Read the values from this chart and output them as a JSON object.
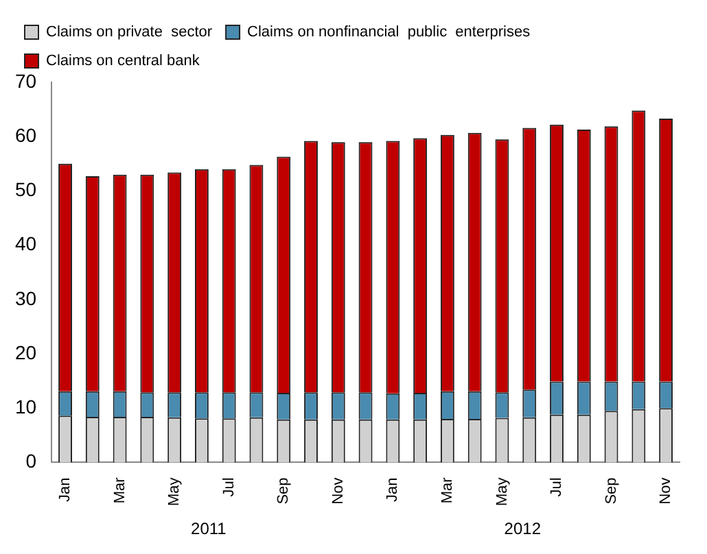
{
  "chart_data": {
    "type": "bar",
    "stacked": true,
    "categories": [
      "Jan",
      null,
      "Mar",
      null,
      "May",
      null,
      "Jul",
      null,
      "Sep",
      null,
      "Nov",
      null,
      "Jan",
      null,
      "Mar",
      null,
      "May",
      null,
      "Jul",
      null,
      "Sep",
      null,
      "Nov"
    ],
    "series": [
      {
        "name": "Claims on private  sector",
        "color": "#d0d0d0",
        "values": [
          8.6,
          8.4,
          8.4,
          8.4,
          8.3,
          8.1,
          8.1,
          8.3,
          7.9,
          7.9,
          7.9,
          7.9,
          7.9,
          7.9,
          8.0,
          8.0,
          8.2,
          8.3,
          8.8,
          8.8,
          9.5,
          9.8,
          10.0
        ]
      },
      {
        "name": "Claims on nonfinancial  public  enterprises",
        "color": "#4a8bb0",
        "values": [
          4.5,
          4.7,
          4.7,
          4.5,
          4.6,
          4.8,
          4.8,
          4.6,
          4.9,
          5.0,
          5.0,
          5.0,
          4.8,
          4.9,
          5.1,
          5.1,
          4.7,
          5.1,
          6.1,
          6.1,
          5.4,
          5.1,
          4.9
        ]
      },
      {
        "name": "Claims on central bank",
        "color": "#c00000",
        "values": [
          41.9,
          39.6,
          39.9,
          40.1,
          40.5,
          41.1,
          41.1,
          41.9,
          43.5,
          46.3,
          46.1,
          46.1,
          46.5,
          46.9,
          47.2,
          47.6,
          46.6,
          48.2,
          47.3,
          46.4,
          47.0,
          49.9,
          48.4
        ]
      }
    ],
    "ylim": [
      0,
      70
    ],
    "yticks": [
      0,
      10,
      20,
      30,
      40,
      50,
      60,
      70
    ],
    "grid": false,
    "legend": "top left",
    "annotations": [
      "2011",
      "2012"
    ]
  }
}
